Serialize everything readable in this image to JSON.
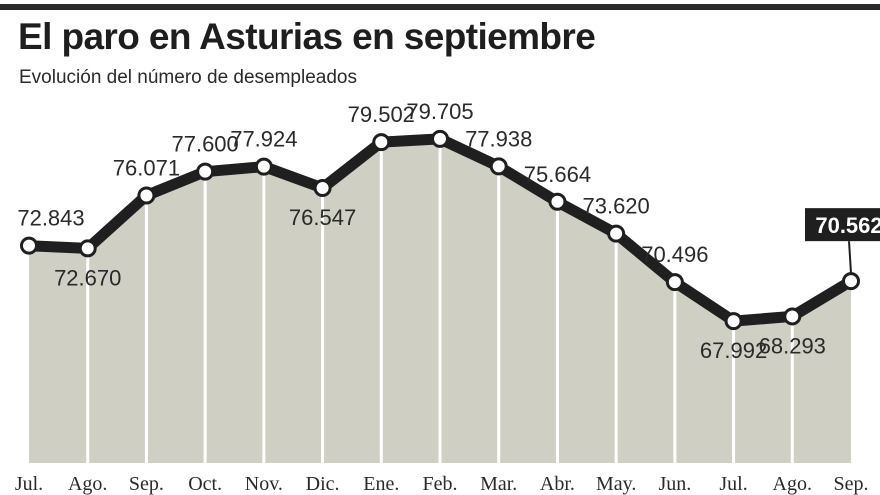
{
  "title": "El paro en Asturias en septiembre",
  "subtitle": "Evolución del número de desempleados",
  "colors": {
    "area": "#cfcfc4",
    "line": "#1f1f1f",
    "highlight_box": "#1f1f1f",
    "background": "#ffffff"
  },
  "chart_data": {
    "type": "area",
    "categories": [
      "Jul.",
      "Ago.",
      "Sep.",
      "Oct.",
      "Nov.",
      "Dic.",
      "Ene.",
      "Feb.",
      "Mar.",
      "Abr.",
      "May.",
      "Jun.",
      "Jul.",
      "Ago.",
      "Sep."
    ],
    "values": [
      72843,
      72670,
      76071,
      77600,
      77924,
      76547,
      79502,
      79705,
      77938,
      75664,
      73620,
      70496,
      67992,
      68293,
      70562
    ],
    "value_labels": [
      "72.843",
      "72.670",
      "76.071",
      "77.600",
      "77.924",
      "76.547",
      "79.502",
      "79.705",
      "77.938",
      "75.664",
      "73.620",
      "70.496",
      "67.992",
      "68.293",
      "70.562"
    ],
    "label_placement": [
      "above",
      "below",
      "above",
      "above",
      "above",
      "below",
      "above",
      "above",
      "above",
      "above",
      "above",
      "above",
      "below",
      "below",
      "above"
    ],
    "highlighted_index": 14,
    "title": "El paro en Asturias en septiembre",
    "subtitle": "Evolución del número de desempleados",
    "xlabel": "",
    "ylabel": "",
    "grid": false,
    "legend": "none"
  }
}
